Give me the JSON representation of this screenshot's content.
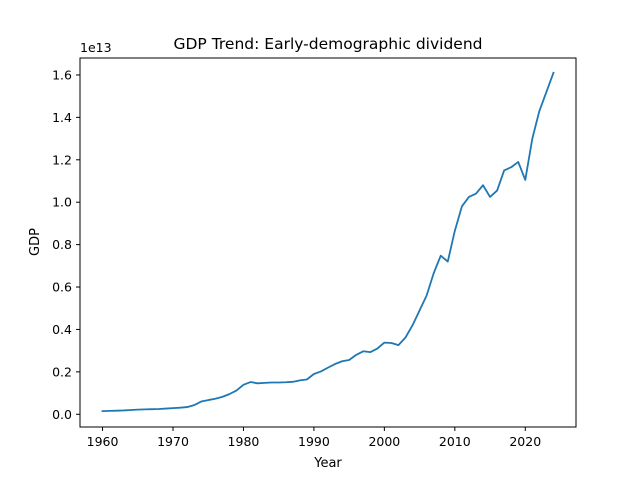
{
  "chart_data": {
    "type": "line",
    "title": "GDP Trend: Early-demographic dividend",
    "xlabel": "Year",
    "ylabel": "GDP",
    "y_offset_label": "1e13",
    "xlim": [
      1956.8,
      2027.2
    ],
    "ylim": [
      -0.06,
      1.68
    ],
    "y_unit_multiplier": 10000000000000.0,
    "x_ticks": [
      1960,
      1970,
      1980,
      1990,
      2000,
      2010,
      2020
    ],
    "y_ticks": [
      0.0,
      0.2,
      0.4,
      0.6,
      0.8,
      1.0,
      1.2,
      1.4,
      1.6
    ],
    "y_tick_labels": [
      "0.0",
      "0.2",
      "0.4",
      "0.6",
      "0.8",
      "1.0",
      "1.2",
      "1.4",
      "1.6"
    ],
    "grid": false,
    "line_color": "#1f77b4",
    "series": [
      {
        "x": [
          1960,
          1961,
          1962,
          1963,
          1964,
          1965,
          1966,
          1967,
          1968,
          1969,
          1970,
          1971,
          1972,
          1973,
          1974,
          1975,
          1976,
          1977,
          1978,
          1979,
          1980,
          1981,
          1982,
          1983,
          1984,
          1985,
          1986,
          1987,
          1988,
          1989,
          1990,
          1991,
          1992,
          1993,
          1994,
          1995,
          1996,
          1997,
          1998,
          1999,
          2000,
          2001,
          2002,
          2003,
          2004,
          2005,
          2006,
          2007,
          2008,
          2009,
          2010,
          2011,
          2012,
          2013,
          2014,
          2015,
          2016,
          2017,
          2018,
          2019,
          2020,
          2021,
          2022,
          2023,
          2024
        ],
        "y": [
          0.015,
          0.016,
          0.017,
          0.018,
          0.02,
          0.022,
          0.023,
          0.024,
          0.025,
          0.027,
          0.029,
          0.031,
          0.034,
          0.043,
          0.06,
          0.067,
          0.073,
          0.082,
          0.095,
          0.112,
          0.139,
          0.152,
          0.146,
          0.148,
          0.15,
          0.15,
          0.151,
          0.153,
          0.16,
          0.164,
          0.19,
          0.202,
          0.22,
          0.237,
          0.25,
          0.256,
          0.28,
          0.297,
          0.293,
          0.31,
          0.338,
          0.336,
          0.326,
          0.362,
          0.42,
          0.49,
          0.56,
          0.665,
          0.748,
          0.72,
          0.865,
          0.98,
          1.025,
          1.04,
          1.08,
          1.025,
          1.055,
          1.15,
          1.165,
          1.19,
          1.105,
          1.3,
          1.43,
          1.52,
          1.61
        ]
      }
    ]
  }
}
